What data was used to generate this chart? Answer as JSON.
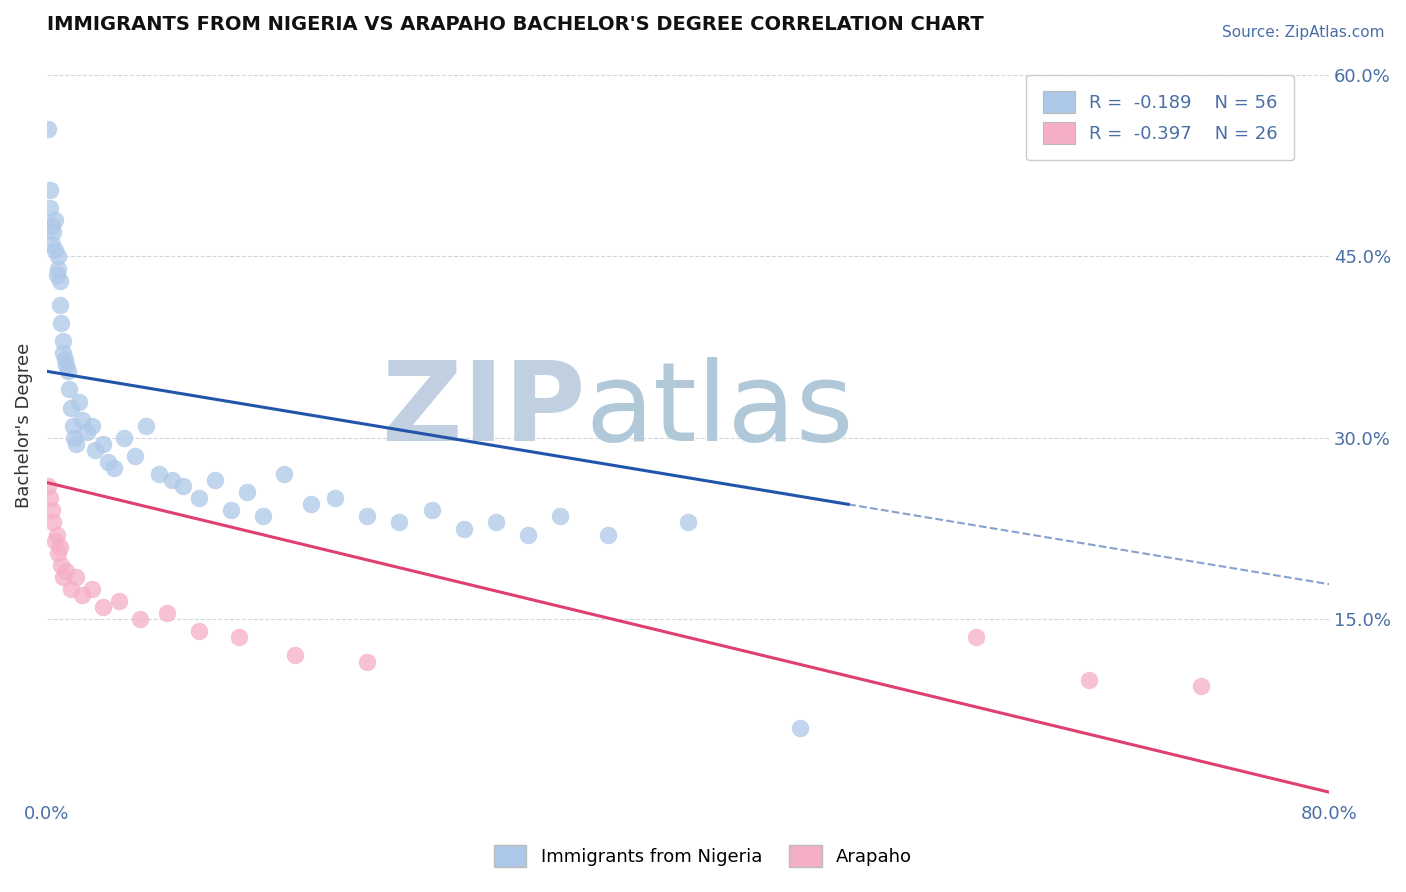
{
  "title": "IMMIGRANTS FROM NIGERIA VS ARAPAHO BACHELOR'S DEGREE CORRELATION CHART",
  "source_text": "Source: ZipAtlas.com",
  "ylabel": "Bachelor's Degree",
  "xmin": 0.0,
  "xmax": 0.8,
  "ymin": 0.0,
  "ymax": 0.62,
  "legend_entry1": "R =  -0.189    N = 56",
  "legend_entry2": "R =  -0.397    N = 26",
  "legend_label1": "Immigrants from Nigeria",
  "legend_label2": "Arapaho",
  "blue_color": "#adc8e8",
  "pink_color": "#f5afc5",
  "blue_line_color": "#2255aa",
  "pink_line_color": "#e04070",
  "watermark_zip": "ZIP",
  "watermark_atlas": "atlas",
  "watermark_color_zip": "#c0d0e0",
  "watermark_color_atlas": "#b0c8d8",
  "background_color": "#ffffff",
  "grid_color": "#d0d8e0",
  "tick_color": "#4a6fa5",
  "title_color": "#111111",
  "ylabel_color": "#333333",
  "blue_line_solid_end": 0.5,
  "pink_line_solid_end": 0.8,
  "blue_intercept": 0.355,
  "blue_slope": -0.22,
  "pink_intercept": 0.263,
  "pink_slope": -0.32,
  "nigeria_x": [
    0.001,
    0.002,
    0.002,
    0.003,
    0.003,
    0.004,
    0.005,
    0.005,
    0.006,
    0.007,
    0.007,
    0.008,
    0.008,
    0.009,
    0.01,
    0.01,
    0.011,
    0.012,
    0.013,
    0.014,
    0.015,
    0.016,
    0.017,
    0.018,
    0.02,
    0.022,
    0.025,
    0.028,
    0.03,
    0.035,
    0.038,
    0.042,
    0.048,
    0.055,
    0.062,
    0.07,
    0.078,
    0.085,
    0.095,
    0.105,
    0.115,
    0.125,
    0.135,
    0.148,
    0.165,
    0.18,
    0.2,
    0.22,
    0.24,
    0.26,
    0.28,
    0.3,
    0.32,
    0.35,
    0.4,
    0.47
  ],
  "nigeria_y": [
    0.555,
    0.505,
    0.49,
    0.475,
    0.46,
    0.47,
    0.48,
    0.455,
    0.435,
    0.45,
    0.44,
    0.43,
    0.41,
    0.395,
    0.38,
    0.37,
    0.365,
    0.36,
    0.355,
    0.34,
    0.325,
    0.31,
    0.3,
    0.295,
    0.33,
    0.315,
    0.305,
    0.31,
    0.29,
    0.295,
    0.28,
    0.275,
    0.3,
    0.285,
    0.31,
    0.27,
    0.265,
    0.26,
    0.25,
    0.265,
    0.24,
    0.255,
    0.235,
    0.27,
    0.245,
    0.25,
    0.235,
    0.23,
    0.24,
    0.225,
    0.23,
    0.22,
    0.235,
    0.22,
    0.23,
    0.06
  ],
  "arapaho_x": [
    0.001,
    0.002,
    0.003,
    0.004,
    0.005,
    0.006,
    0.007,
    0.008,
    0.009,
    0.01,
    0.012,
    0.015,
    0.018,
    0.022,
    0.028,
    0.035,
    0.045,
    0.058,
    0.075,
    0.095,
    0.12,
    0.155,
    0.2,
    0.58,
    0.65,
    0.72
  ],
  "arapaho_y": [
    0.26,
    0.25,
    0.24,
    0.23,
    0.215,
    0.22,
    0.205,
    0.21,
    0.195,
    0.185,
    0.19,
    0.175,
    0.185,
    0.17,
    0.175,
    0.16,
    0.165,
    0.15,
    0.155,
    0.14,
    0.135,
    0.12,
    0.115,
    0.135,
    0.1,
    0.095
  ]
}
